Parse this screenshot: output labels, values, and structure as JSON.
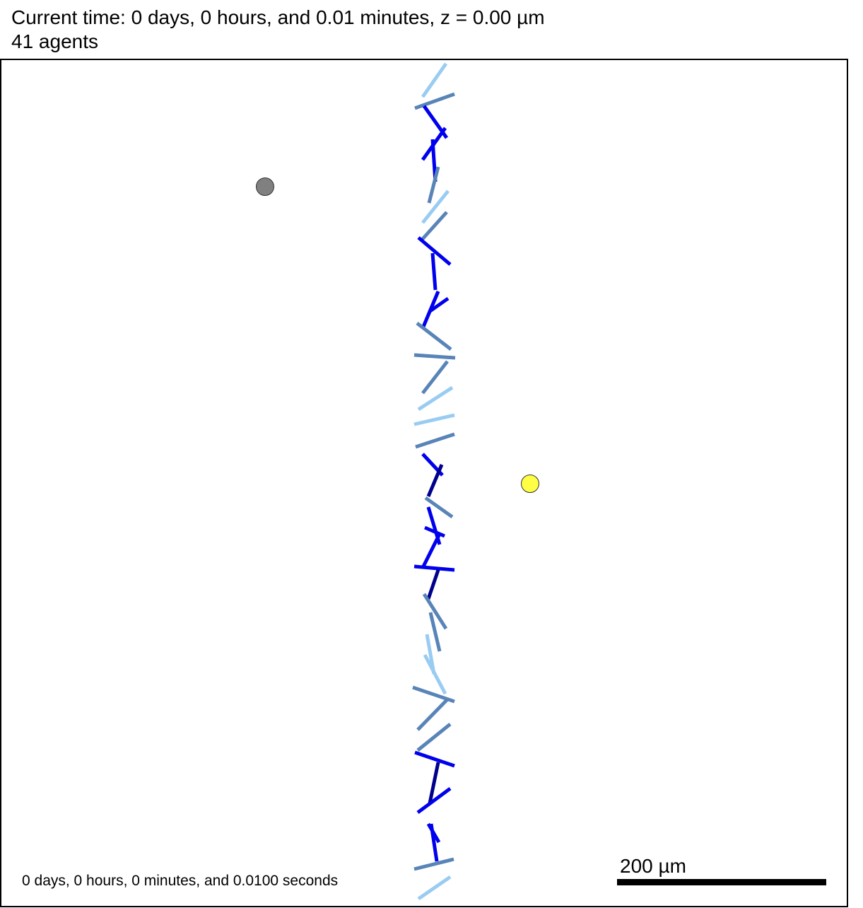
{
  "header": {
    "time_line": "Current time: 0 days, 0 hours, and 0.01 minutes, z = 0.00 µm",
    "agents_line": "41 agents"
  },
  "footer": {
    "elapsed": "0 days, 0 hours, 0 minutes, and 0.0100 seconds"
  },
  "scale_bar": {
    "label": "200 µm",
    "color": "#000000"
  },
  "colors": {
    "frame": "#000000",
    "gray_particle": "#808080",
    "yellow_particle": "#ffff44",
    "agent_light": "#99ccf2",
    "agent_mid": "#5884b8",
    "agent_blue": "#0000ee",
    "agent_navy": "#00008b"
  }
}
